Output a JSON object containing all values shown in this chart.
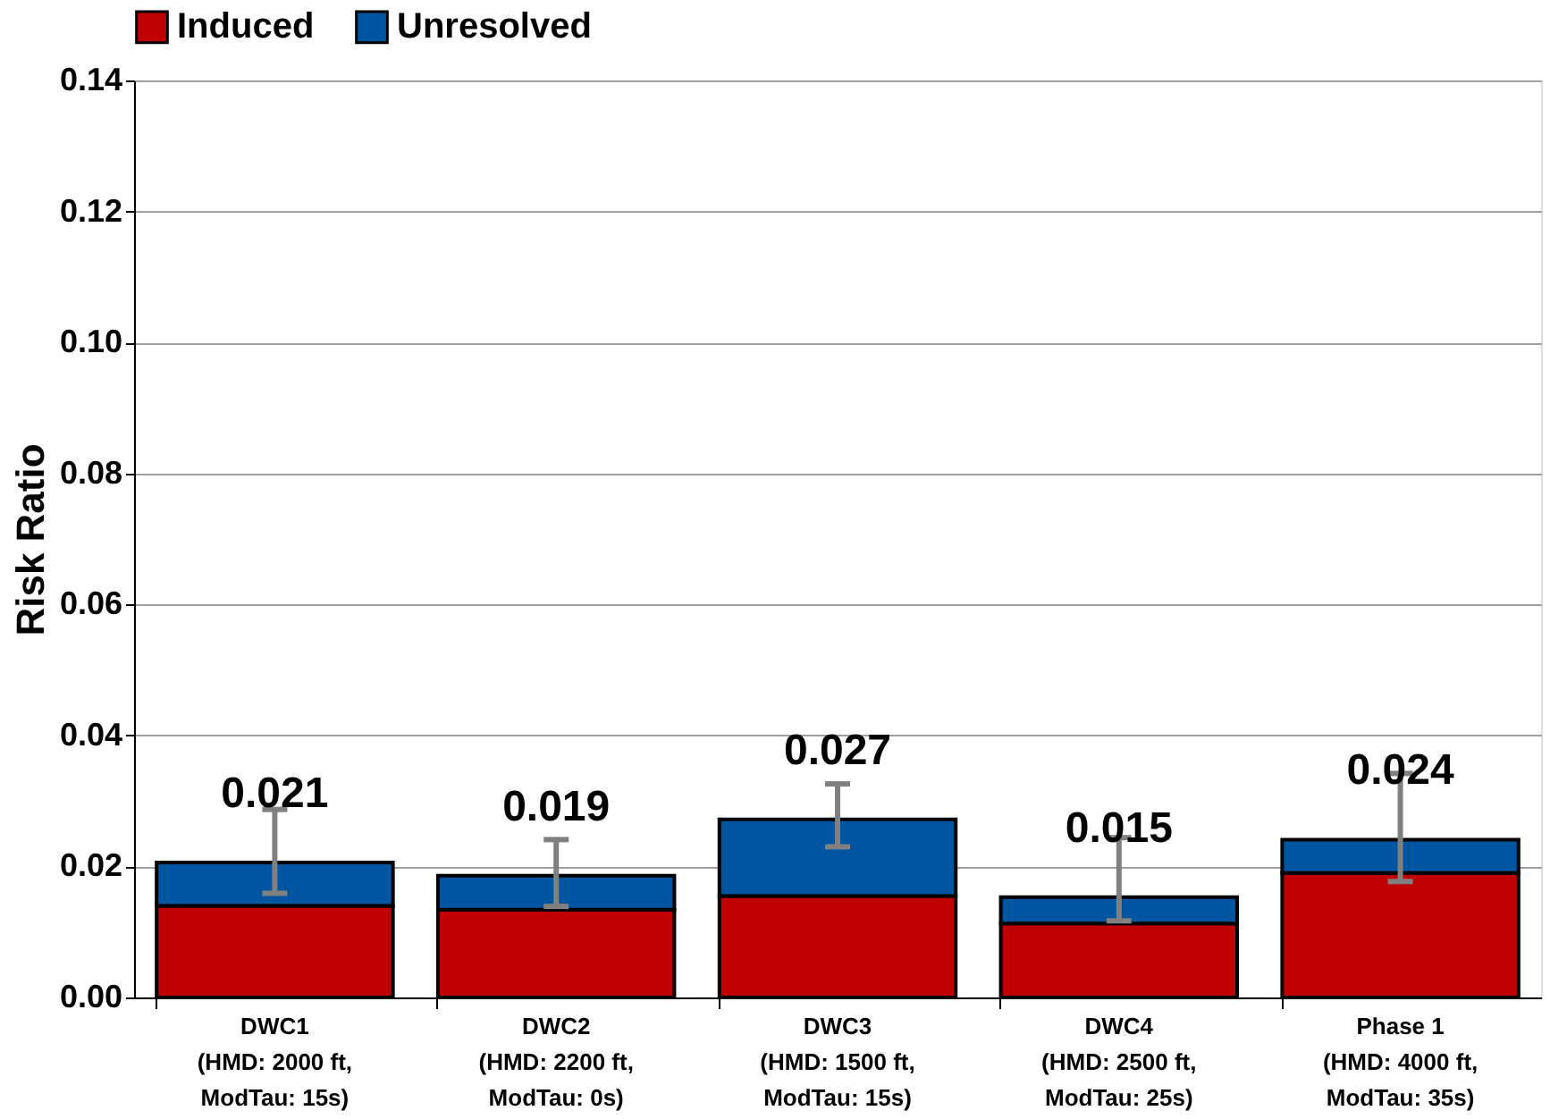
{
  "chart_data": {
    "type": "bar",
    "stacked": true,
    "ylabel": "Risk Ratio",
    "categories": [
      "DWC1\n(HMD: 2000 ft,\nModTau: 15s)",
      "DWC2\n(HMD: 2200 ft,\nModTau: 0s)",
      "DWC3\n(HMD: 1500 ft,\nModTau: 15s)",
      "DWC4\n(HMD: 2500 ft,\nModTau: 25s)",
      "Phase 1\n(HMD: 4000 ft,\nModTau: 35s)"
    ],
    "series": [
      {
        "name": "Induced",
        "color": "#c00000",
        "values": [
          0.014,
          0.0134,
          0.0155,
          0.0113,
          0.019
        ]
      },
      {
        "name": "Unresolved",
        "color": "#0055a0",
        "values": [
          0.0066,
          0.0052,
          0.0117,
          0.004,
          0.0051
        ],
        "errors": [
          [
            0.0159,
            0.0287
          ],
          [
            0.0139,
            0.0241
          ],
          [
            0.023,
            0.0326
          ],
          [
            0.0117,
            0.0244
          ],
          [
            0.0177,
            0.0342
          ]
        ]
      }
    ],
    "totals": [
      "0.021",
      "0.019",
      "0.027",
      "0.015",
      "0.024"
    ],
    "ylim": [
      0,
      0.14
    ],
    "yticks": [
      {
        "value": 0,
        "label": "0.00"
      },
      {
        "value": 0.02,
        "label": "0.02"
      },
      {
        "value": 0.04,
        "label": "0.04"
      },
      {
        "value": 0.06,
        "label": "0.06"
      },
      {
        "value": 0.08,
        "label": "0.08"
      },
      {
        "value": 0.1,
        "label": "0.10"
      },
      {
        "value": 0.12,
        "label": "0.12"
      },
      {
        "value": 0.14,
        "label": "0.14"
      }
    ],
    "grid": "y",
    "legend": "top"
  }
}
